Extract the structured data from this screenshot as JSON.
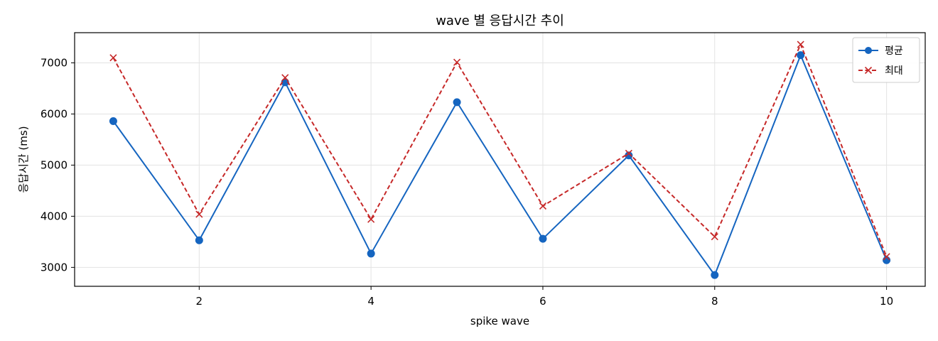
{
  "chart_data": {
    "type": "line",
    "title": "wave 별 응답시간 추이",
    "xlabel": "spike wave",
    "ylabel": "응답시간 (ms)",
    "x": [
      1,
      2,
      3,
      4,
      5,
      6,
      7,
      8,
      9,
      10
    ],
    "xlim": [
      0.55,
      10.45
    ],
    "ylim": [
      2630,
      7590
    ],
    "xticks": [
      2,
      4,
      6,
      8,
      10
    ],
    "yticks": [
      3000,
      4000,
      5000,
      6000,
      7000
    ],
    "grid": true,
    "legend_position": "top-right",
    "series": [
      {
        "name": "평균",
        "values": [
          5860,
          3530,
          6620,
          3270,
          6230,
          3560,
          5190,
          2850,
          7150,
          3140
        ],
        "color": "#1565c0",
        "line_style": "solid",
        "marker": "circle"
      },
      {
        "name": "최대",
        "values": [
          7100,
          4040,
          6710,
          3940,
          7010,
          4200,
          5230,
          3600,
          7360,
          3210
        ],
        "color": "#c62828",
        "line_style": "dashed",
        "marker": "x"
      }
    ]
  }
}
